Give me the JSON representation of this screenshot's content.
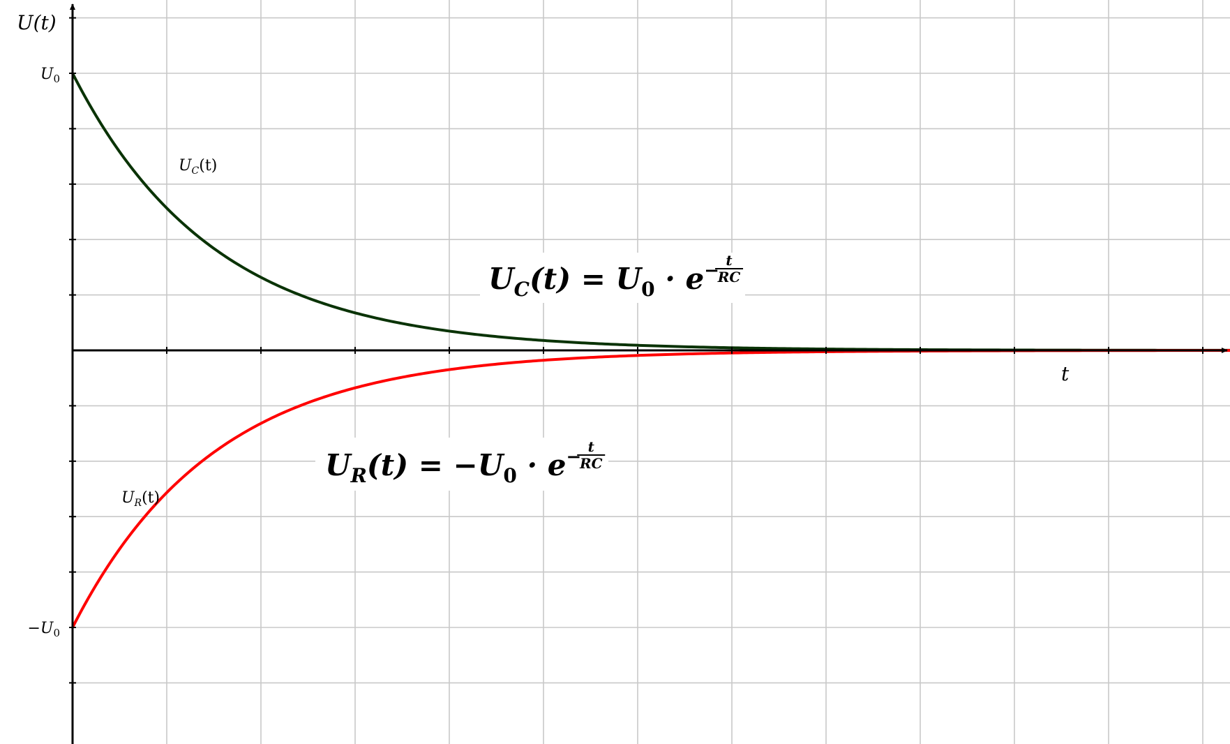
{
  "chart_data": {
    "type": "line",
    "x_axis": {
      "label": "t",
      "range": [
        0,
        10.9
      ],
      "grid_step": 1,
      "tick_labels": []
    },
    "y_axis": {
      "label": "U(t)",
      "range": [
        -1.1,
        1.25
      ],
      "grid_step": 0.2,
      "tick_labels": [
        {
          "value": 1,
          "text": "U",
          "sub": "0",
          "prefix": ""
        },
        {
          "value": -1,
          "text": "U",
          "sub": "0",
          "prefix": "−"
        }
      ]
    },
    "grid": true,
    "time_constant_RC": 1.5,
    "series": [
      {
        "name": "U_C(t)",
        "label_text": "U",
        "label_sub": "C",
        "label_suffix": "(t)",
        "color": "#0a3306",
        "sign": 1,
        "formula": {
          "lhs": "U",
          "lhs_sub": "C",
          "lhs_paren": "(t)",
          "eq": " = ",
          "neg": "",
          "rhs": "U",
          "rhs_sub": "0",
          "dot": " · e",
          "exp_minus": "−",
          "frac_num": "t",
          "frac_den": "RC"
        }
      },
      {
        "name": "U_R(t)",
        "label_text": "U",
        "label_sub": "R",
        "label_suffix": "(t)",
        "color": "#ff0000",
        "sign": -1,
        "formula": {
          "lhs": "U",
          "lhs_sub": "R",
          "lhs_paren": "(t)",
          "eq": " = ",
          "neg": "−",
          "rhs": "U",
          "rhs_sub": "0",
          "dot": " · e",
          "exp_minus": "−",
          "frac_num": "t",
          "frac_den": "RC"
        }
      }
    ]
  }
}
